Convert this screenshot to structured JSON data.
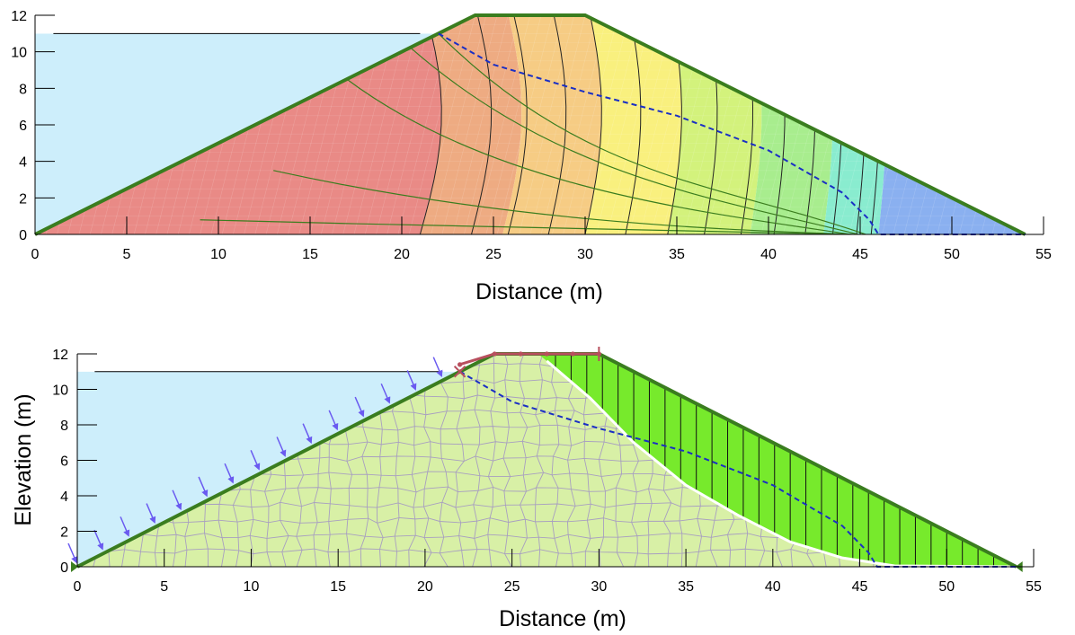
{
  "chart_data": [
    {
      "type": "area",
      "title": "",
      "xlabel": "Distance (m)",
      "ylabel": "",
      "xlim": [
        0,
        55
      ],
      "ylim": [
        0,
        12
      ],
      "x_ticks": [
        "0",
        "5",
        "10",
        "15",
        "20",
        "25",
        "30",
        "35",
        "40",
        "45",
        "50",
        "55"
      ],
      "y_ticks": [
        "0",
        "2",
        "4",
        "6",
        "8",
        "10",
        "12"
      ],
      "dam_outline": {
        "x": [
          0,
          24,
          30,
          54
        ],
        "y": [
          0,
          12,
          12,
          0
        ]
      },
      "reservoir_level": 11,
      "reservoir_line_x": [
        1,
        21
      ],
      "phreatic_line": {
        "x": [
          22,
          25,
          30,
          35,
          40,
          44,
          45.5,
          46,
          54
        ],
        "y": [
          11,
          9.3,
          7.8,
          6.5,
          4.6,
          2.3,
          0.8,
          0,
          0
        ]
      },
      "head_contour_bands": [
        {
          "x_start": 0,
          "color": "#e98a86"
        },
        {
          "x_start": 21,
          "color": "#eeab82"
        },
        {
          "x_start": 25.5,
          "color": "#f6cc84"
        },
        {
          "x_start": 30,
          "color": "#f9f07e"
        },
        {
          "x_start": 34.5,
          "color": "#d3f27c"
        },
        {
          "x_start": 39,
          "color": "#a8ed8e"
        },
        {
          "x_start": 43,
          "color": "#89eccf"
        },
        {
          "x_start": 46,
          "color": "#8ab0f0"
        }
      ]
    },
    {
      "type": "area",
      "title": "",
      "xlabel": "Distance (m)",
      "ylabel": "Elevation (m)",
      "xlim": [
        0,
        55
      ],
      "ylim": [
        0,
        12
      ],
      "x_ticks": [
        "0",
        "5",
        "10",
        "15",
        "20",
        "25",
        "30",
        "35",
        "40",
        "45",
        "50",
        "55"
      ],
      "y_ticks": [
        "0",
        "2",
        "4",
        "6",
        "8",
        "10",
        "12"
      ],
      "dam_outline": {
        "x": [
          0,
          24,
          30,
          54
        ],
        "y": [
          0,
          12,
          12,
          0
        ]
      },
      "reservoir_level": 11,
      "reservoir_line_x": [
        1,
        21
      ],
      "phreatic_line": {
        "x": [
          22,
          25,
          30,
          35,
          40,
          44,
          45.5,
          46,
          54
        ],
        "y": [
          11,
          9.3,
          7.8,
          6.5,
          4.6,
          2.3,
          0.8,
          0,
          0
        ]
      },
      "slip_surface": {
        "x": [
          27,
          29.5,
          32,
          35,
          38,
          41,
          44,
          47,
          54
        ],
        "y": [
          11.6,
          9.5,
          7.0,
          4.6,
          2.9,
          1.4,
          0.5,
          0.05,
          0
        ]
      },
      "pressure_arrow_x": [
        0,
        1.5,
        3,
        4.5,
        6,
        7.5,
        9,
        10.5,
        12,
        13.5,
        15,
        16.5,
        18,
        19.5,
        21
      ],
      "crest_points_x": [
        22,
        24,
        25.5,
        27,
        28.5,
        30
      ]
    }
  ],
  "colors": {
    "reservoir": "#cdeefb",
    "dam_outline": "#3a7d1f",
    "phreatic": "#1a2fc4",
    "mesh_fill": "#d8f0a6",
    "mesh_line": "#a89fc0",
    "slip_mass": "#77ea2c",
    "slip_curve": "#ffffff",
    "arrows": "#6a5af0",
    "crest": "#b84f5e"
  }
}
